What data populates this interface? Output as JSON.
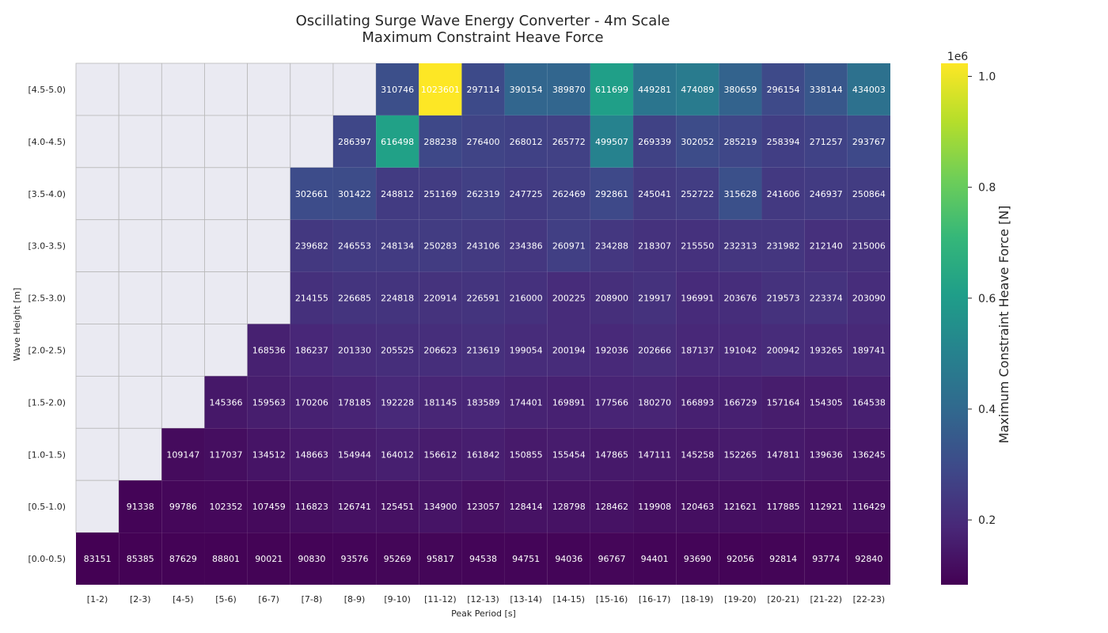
{
  "chart_data": {
    "type": "heatmap",
    "title": "Oscillating Surge Wave Energy Converter - 4m Scale",
    "subtitle": "Maximum Constraint Heave Force",
    "xlabel": "Peak Period [s]",
    "ylabel": "Wave Height [m]",
    "x_categories": [
      "[1-2)",
      "[2-3)",
      "[4-5)",
      "[5-6)",
      "[6-7)",
      "[7-8)",
      "[8-9)",
      "[9-10)",
      "[11-12)",
      "[12-13)",
      "[13-14)",
      "[14-15)",
      "[15-16)",
      "[16-17)",
      "[18-19)",
      "[19-20)",
      "[20-21)",
      "[21-22)",
      "[22-23)"
    ],
    "y_categories": [
      "[4.5-5.0)",
      "[4.0-4.5)",
      "[3.5-4.0)",
      "[3.0-3.5)",
      "[2.5-3.0)",
      "[2.0-2.5)",
      "[1.5-2.0)",
      "[1.0-1.5)",
      "[0.5-1.0)",
      "[0.0-0.5)"
    ],
    "values": [
      [
        null,
        null,
        null,
        null,
        null,
        null,
        null,
        310746,
        1023601,
        297114,
        390154,
        389870,
        611699,
        449281,
        474089,
        380659,
        296154,
        338144,
        434003
      ],
      [
        null,
        null,
        null,
        null,
        null,
        null,
        286397,
        616498,
        288238,
        276400,
        268012,
        265772,
        499507,
        269339,
        302052,
        285219,
        258394,
        271257,
        293767
      ],
      [
        null,
        null,
        null,
        null,
        null,
        302661,
        301422,
        248812,
        251169,
        262319,
        247725,
        262469,
        292861,
        245041,
        252722,
        315628,
        241606,
        246937,
        250864
      ],
      [
        null,
        null,
        null,
        null,
        null,
        239682,
        246553,
        248134,
        250283,
        243106,
        234386,
        260971,
        234288,
        218307,
        215550,
        232313,
        231982,
        212140,
        215006
      ],
      [
        null,
        null,
        null,
        null,
        null,
        214155,
        226685,
        224818,
        220914,
        226591,
        216000,
        200225,
        208900,
        219917,
        196991,
        203676,
        219573,
        223374,
        203090
      ],
      [
        null,
        null,
        null,
        null,
        168536,
        186237,
        201330,
        205525,
        206623,
        213619,
        199054,
        200194,
        192036,
        202666,
        187137,
        191042,
        200942,
        193265,
        189741
      ],
      [
        null,
        null,
        null,
        145366,
        159563,
        170206,
        178185,
        192228,
        181145,
        183589,
        174401,
        169891,
        177566,
        180270,
        166893,
        166729,
        157164,
        154305,
        164538
      ],
      [
        null,
        null,
        109147,
        117037,
        134512,
        148663,
        154944,
        164012,
        156612,
        161842,
        150855,
        155454,
        147865,
        147111,
        145258,
        152265,
        147811,
        139636,
        136245
      ],
      [
        null,
        91338,
        99786,
        102352,
        107459,
        116823,
        126741,
        125451,
        134900,
        123057,
        128414,
        128798,
        128462,
        119908,
        120463,
        121621,
        117885,
        112921,
        116429
      ],
      [
        83151,
        85385,
        87629,
        88801,
        90021,
        90830,
        93576,
        95269,
        95817,
        94538,
        94751,
        94036,
        96767,
        94401,
        93690,
        92056,
        92814,
        93774,
        92840
      ]
    ],
    "colormap": "viridis",
    "vmin": 83151,
    "vmax": 1023601,
    "missing_color": "#eaeaf2",
    "colorbar": {
      "label": "Maximum Constraint Heave Force [N]",
      "scale_label": "1e6",
      "ticks": [
        0.2,
        0.4,
        0.6,
        0.8,
        1.0
      ],
      "tick_labels": [
        "0.2",
        "0.4",
        "0.6",
        "0.8",
        "1.0"
      ]
    }
  }
}
